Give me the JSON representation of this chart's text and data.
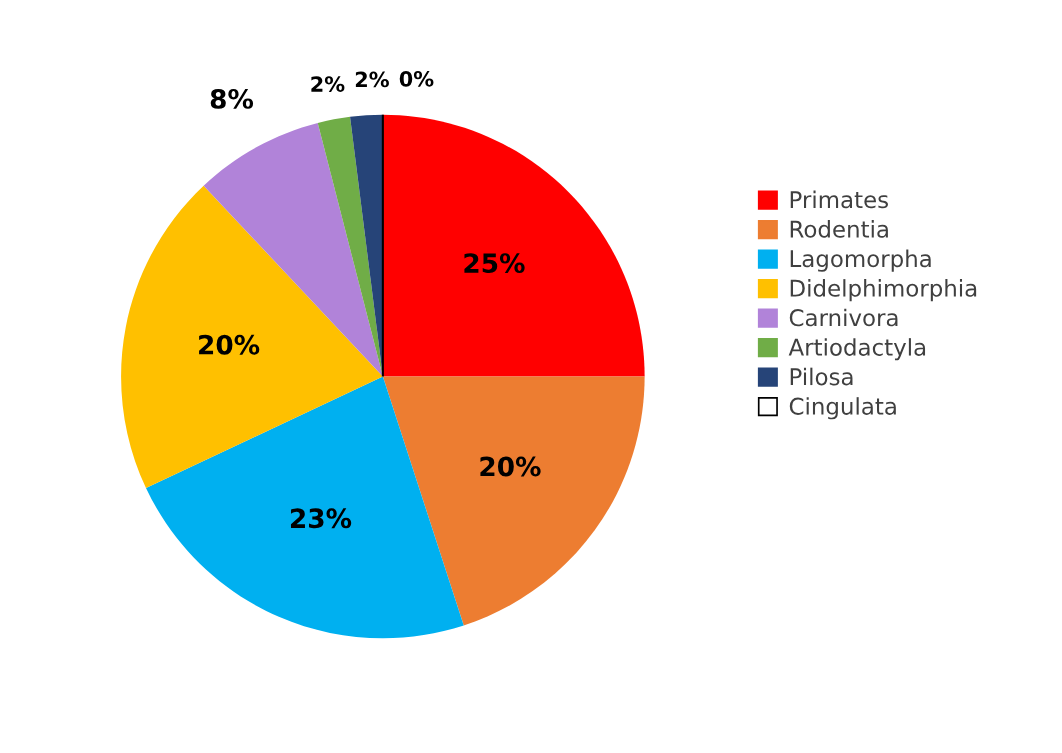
{
  "chart_data": {
    "type": "pie",
    "categories": [
      "Primates",
      "Rodentia",
      "Lagomorpha",
      "Didelphimorphia",
      "Carnivora",
      "Artiodactyla",
      "Pilosa",
      "Cingulata"
    ],
    "values": [
      25,
      20,
      23,
      20,
      8,
      2,
      2,
      0
    ],
    "colors": [
      "#ff0000",
      "#ed7d31",
      "#00b0f0",
      "#ffc000",
      "#b183d9",
      "#70ad47",
      "#264478",
      "#ffffff"
    ],
    "value_labels": [
      "25%",
      "20%",
      "23%",
      "20%",
      "8%",
      "2%",
      "2%",
      "0%"
    ],
    "legend": "right"
  }
}
